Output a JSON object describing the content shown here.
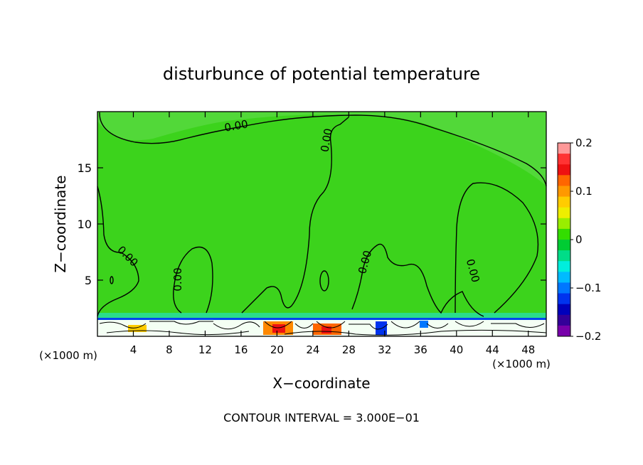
{
  "chart_data": {
    "type": "heatmap",
    "title": "disturbunce of potential temperature",
    "xlabel": "X−coordinate",
    "ylabel": "Z−coordinate",
    "x_unit_left": "(×1000 m)",
    "x_unit_right": "(×1000 m)",
    "xlim": [
      0,
      50
    ],
    "ylim": [
      0,
      20
    ],
    "x_ticks": [
      4,
      8,
      12,
      16,
      20,
      24,
      28,
      32,
      36,
      40,
      44,
      48
    ],
    "x_tick_labels": [
      "4",
      "8",
      "12",
      "16",
      "20",
      "24",
      "28",
      "32",
      "36",
      "40",
      "44",
      "48"
    ],
    "y_ticks": [
      5,
      10,
      15
    ],
    "y_tick_labels": [
      "5",
      "10",
      "15"
    ],
    "contour_labels": [
      "0.00",
      "0.00",
      "0.00",
      "0.00",
      "0.00",
      "0.00"
    ],
    "colorbar": {
      "min": -0.2,
      "max": 0.2,
      "tick_values": [
        0.2,
        0.1,
        0,
        -0.1,
        -0.2
      ],
      "tick_labels": [
        "0.2",
        "0.1",
        "0",
        "−0.1",
        "−0.2"
      ],
      "colors": [
        "#ff9999",
        "#ff3333",
        "#ee1111",
        "#ff6600",
        "#ff9900",
        "#ffcc00",
        "#eeee00",
        "#99ee00",
        "#33dd00",
        "#00cc33",
        "#00dd88",
        "#00eedd",
        "#00bbff",
        "#0077ff",
        "#0033ee",
        "#0000bb",
        "#330099",
        "#7700aa"
      ]
    },
    "background_color": "#3cd31c",
    "footnote": "CONTOUR INTERVAL = 3.000E−01"
  }
}
